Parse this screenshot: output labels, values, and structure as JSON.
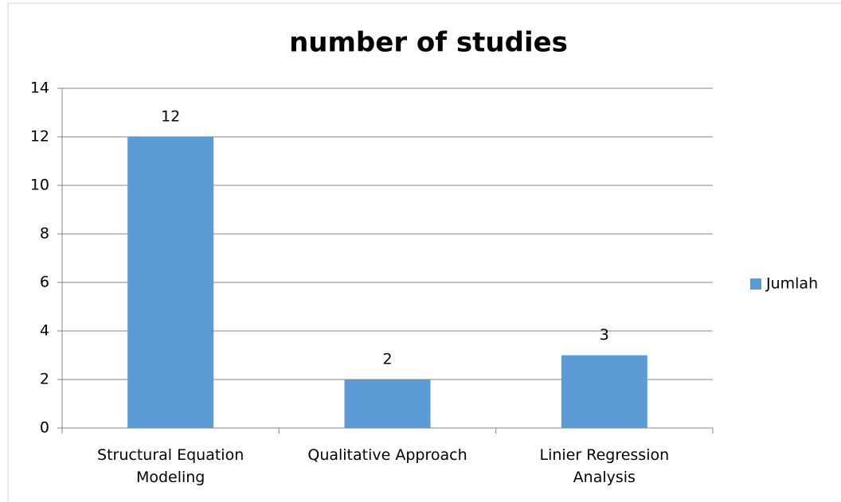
{
  "chart_data": {
    "type": "bar",
    "title": "number of studies",
    "categories": [
      "Structural Equation Modeling",
      "Qualitative Approach",
      "Linier Regression Analysis"
    ],
    "series": [
      {
        "name": "Jumlah",
        "color": "#5b9bd5",
        "values": [
          12,
          2,
          3
        ]
      }
    ],
    "ylim": [
      0,
      14
    ],
    "yticks": [
      0,
      2,
      4,
      6,
      8,
      10,
      12,
      14
    ],
    "grid": true,
    "legend": "right",
    "data_labels": true
  }
}
